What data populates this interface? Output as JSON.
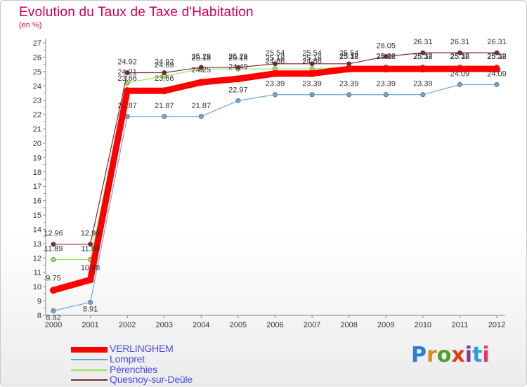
{
  "title": "Evolution du Taux de Taxe d'Habitation",
  "unit_label": "(en %)",
  "logo_text": "Proxiti",
  "colors": {
    "title": "#d2004c",
    "legend_text": "#4a4af0",
    "axis": "#888888",
    "tick_text": "#333333",
    "value_text": "#333333"
  },
  "chart_data": {
    "type": "line",
    "title": "Evolution du Taux de Taxe d'Habitation",
    "ylabel": "(en %)",
    "xlabel": "",
    "x": [
      "2000",
      "2001",
      "2002",
      "2003",
      "2004",
      "2005",
      "2006",
      "2007",
      "2008",
      "2009",
      "2010",
      "2011",
      "2012"
    ],
    "ylim": [
      8,
      27
    ],
    "yticks": [
      8,
      9,
      10,
      11,
      12,
      13,
      14,
      15,
      16,
      17,
      18,
      19,
      20,
      21,
      22,
      23,
      24,
      25,
      26,
      27
    ],
    "grid": false,
    "legend_position": "bottom-left",
    "series": [
      {
        "name": "VERLINGHEM",
        "color": "#ff0000",
        "values": [
          9.75,
          10.48,
          23.66,
          23.66,
          24.25,
          24.49,
          24.86,
          24.86,
          25.18,
          25.18,
          25.18,
          25.18,
          25.18
        ],
        "labels": [
          "9.75",
          "10.48",
          "23.66",
          "23.66",
          "24.25",
          "24.49",
          "24.86",
          "24.86",
          "25.18",
          "25.18",
          "25.18",
          "25.18",
          "25.18"
        ]
      },
      {
        "name": "Lompret",
        "color": "#6ba6d8",
        "values": [
          8.32,
          8.91,
          21.87,
          21.87,
          21.87,
          22.97,
          23.39,
          23.39,
          23.39,
          23.39,
          23.39,
          24.09,
          24.09
        ],
        "labels": [
          "8.32",
          "8.91",
          "21.87",
          "21.87",
          "21.87",
          "22.97",
          "23.39",
          "23.39",
          "23.39",
          "23.39",
          "23.39",
          "24.09",
          "24.09"
        ]
      },
      {
        "name": "Pérenchies",
        "color": "#9ce25c",
        "values": [
          11.89,
          11.89,
          24.21,
          24.69,
          25.18,
          25.18,
          25.18,
          25.18,
          25.32,
          25.32,
          25.32,
          25.32,
          25.32
        ],
        "labels": [
          "11.89",
          "11.89",
          "24.21",
          "24.69",
          "25.18",
          "25.18",
          "25.18",
          "25.18",
          "25.32",
          "25.32",
          "25.32",
          "25.32",
          "25.32"
        ]
      },
      {
        "name": "Quesnoy-sur-Deûle",
        "color": "#7a2a2a",
        "values": [
          12.96,
          12.96,
          24.92,
          24.92,
          25.29,
          25.29,
          25.54,
          25.54,
          25.54,
          26.05,
          26.31,
          26.31,
          26.31
        ],
        "labels": [
          "12.96",
          "12.96",
          "24.92",
          "24.92",
          "25.29",
          "25.29",
          "25.54",
          "25.54",
          "25.54",
          "26.05",
          "26.31",
          "26.31",
          "26.31"
        ]
      }
    ]
  }
}
